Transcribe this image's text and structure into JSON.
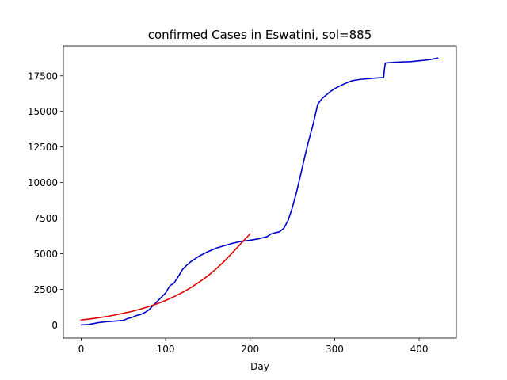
{
  "chart_data": {
    "type": "line",
    "title": "confirmed Cases in Eswatini, sol=885",
    "xlabel": "Day",
    "ylabel": "",
    "xlim": [
      -21,
      444
    ],
    "ylim": [
      -920,
      19600
    ],
    "x_ticks": [
      0,
      100,
      200,
      300,
      400
    ],
    "x_tick_labels": [
      "0",
      "100",
      "200",
      "300",
      "400"
    ],
    "y_ticks": [
      0,
      2500,
      5000,
      7500,
      10000,
      12500,
      15000,
      17500
    ],
    "y_tick_labels": [
      "0",
      "2500",
      "5000",
      "7500",
      "10000",
      "12500",
      "15000",
      "17500"
    ],
    "grid": false,
    "legend": "none",
    "series": [
      {
        "color": "#0000cc",
        "x": [
          0,
          8,
          15,
          20,
          30,
          40,
          50,
          55,
          60,
          65,
          70,
          75,
          80,
          85,
          90,
          95,
          100,
          105,
          110,
          115,
          120,
          125,
          130,
          135,
          140,
          150,
          160,
          170,
          180,
          190,
          200,
          210,
          220,
          225,
          230,
          235,
          240,
          245,
          250,
          255,
          260,
          265,
          270,
          275,
          280,
          285,
          290,
          295,
          300,
          310,
          320,
          330,
          340,
          350,
          358,
          359,
          360,
          370,
          380,
          390,
          400,
          410,
          418,
          422
        ],
        "y": [
          0,
          30,
          100,
          160,
          230,
          270,
          320,
          450,
          530,
          650,
          730,
          860,
          1050,
          1350,
          1650,
          1950,
          2250,
          2750,
          2950,
          3400,
          3900,
          4200,
          4450,
          4650,
          4850,
          5150,
          5400,
          5580,
          5750,
          5870,
          5950,
          6050,
          6200,
          6400,
          6480,
          6550,
          6800,
          7350,
          8250,
          9350,
          10600,
          11900,
          13100,
          14200,
          15500,
          15900,
          16150,
          16400,
          16600,
          16900,
          17150,
          17250,
          17300,
          17350,
          17380,
          18000,
          18400,
          18450,
          18480,
          18500,
          18560,
          18620,
          18700,
          18750
        ]
      },
      {
        "color": "#dd0000",
        "x": [
          0,
          10,
          20,
          30,
          40,
          50,
          60,
          70,
          80,
          90,
          100,
          110,
          120,
          130,
          140,
          150,
          160,
          170,
          180,
          190,
          200
        ],
        "y": [
          350,
          420,
          500,
          590,
          700,
          820,
          950,
          1110,
          1290,
          1490,
          1720,
          1990,
          2290,
          2630,
          3020,
          3450,
          3950,
          4510,
          5130,
          5780,
          6400
        ]
      }
    ]
  }
}
